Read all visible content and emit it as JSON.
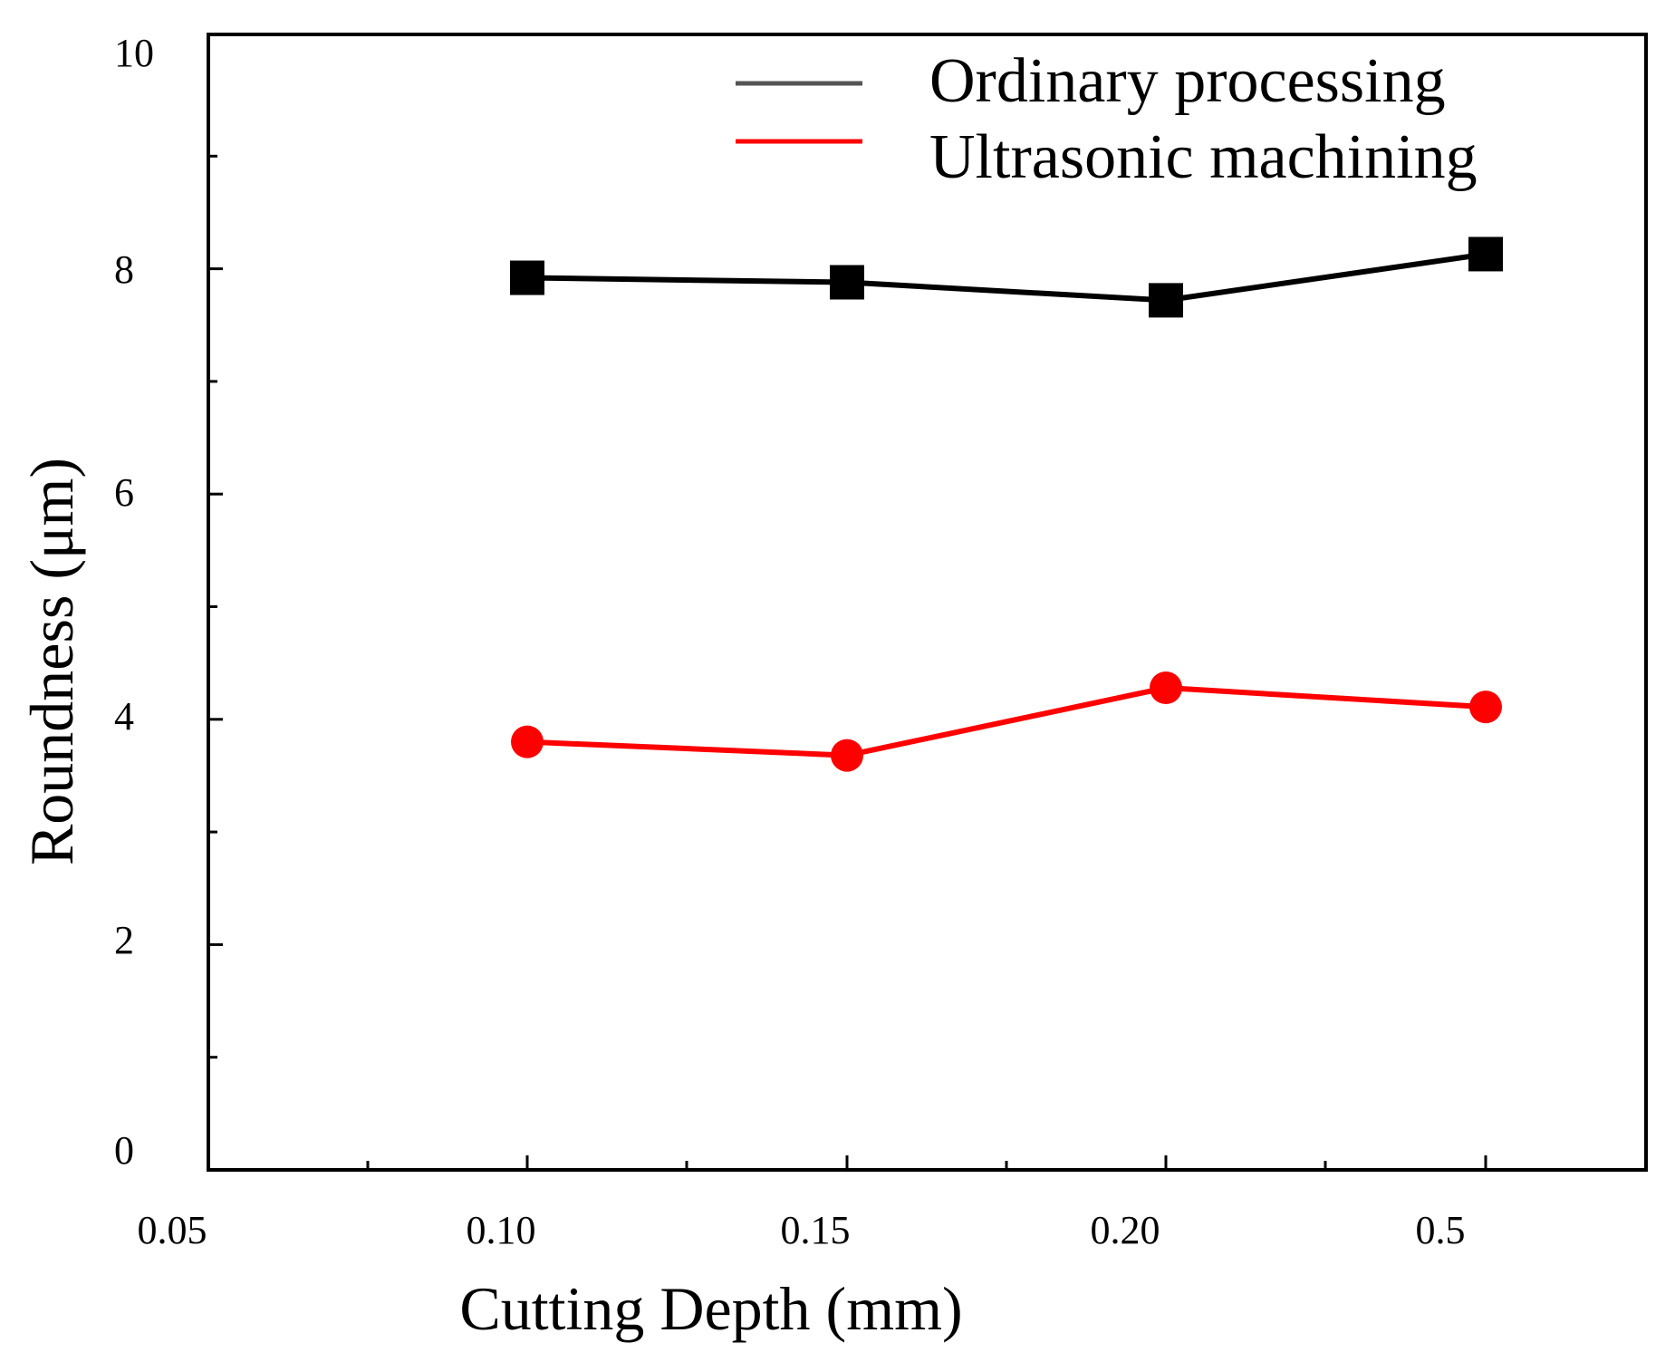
{
  "chart_data": {
    "type": "line",
    "title": "",
    "xlabel": "Cutting Depth (mm)",
    "ylabel": "Roundness (μm)",
    "x_tick_labels": [
      "0.05",
      "0.10",
      "0.15",
      "0.20",
      "0.5"
    ],
    "y_tick_labels": [
      "0",
      "2",
      "4",
      "6",
      "8",
      "10"
    ],
    "ylim": [
      0,
      10
    ],
    "grid": false,
    "legend_position": "top-right",
    "categories": [
      "0.10",
      "0.15",
      "0.20",
      "0.5"
    ],
    "series": [
      {
        "name": "Ordinary processing",
        "legend_line_color": "#555555",
        "color": "#000000",
        "marker": "square",
        "values": [
          7.92,
          7.88,
          7.72,
          8.13
        ]
      },
      {
        "name": "Ultrasonic machining",
        "legend_line_color": "#ff0000",
        "color": "#ff0000",
        "marker": "circle",
        "values": [
          3.8,
          3.68,
          4.28,
          4.11
        ]
      }
    ]
  }
}
